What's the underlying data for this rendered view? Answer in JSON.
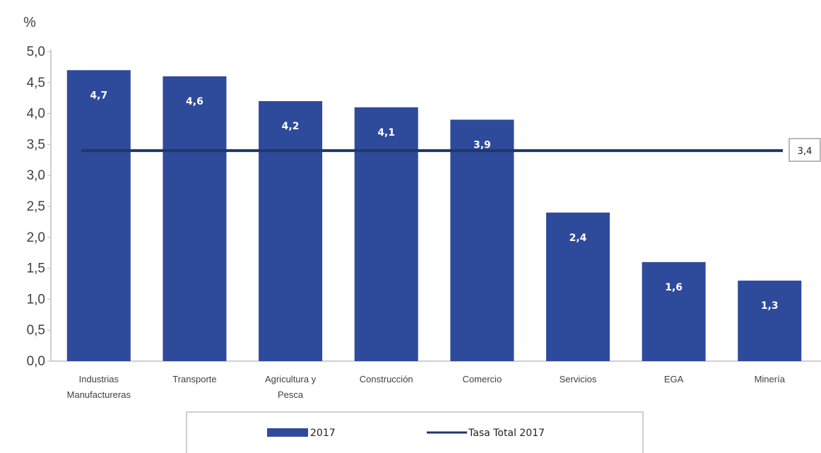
{
  "chart_data": {
    "type": "bar",
    "unit_label": "%",
    "categories": [
      [
        "Industrias",
        "Manufactureras"
      ],
      [
        "Transporte"
      ],
      [
        "Agricultura y",
        "Pesca"
      ],
      [
        "Construcción"
      ],
      [
        "Comercio"
      ],
      [
        "Servicios"
      ],
      [
        "EGA"
      ],
      [
        "Minería"
      ]
    ],
    "series": [
      {
        "name": "2017",
        "values": [
          4.7,
          4.6,
          4.2,
          4.1,
          3.9,
          2.4,
          1.6,
          1.3
        ],
        "value_labels": [
          "4,7",
          "4,6",
          "4,2",
          "4,1",
          "3,9",
          "2,4",
          "1,6",
          "1,3"
        ],
        "color": "#2e4a9b"
      }
    ],
    "reference_line": {
      "name": "Tasa Total 2017",
      "value": 3.4,
      "label": "3,4",
      "color": "#1f3864"
    },
    "ylim": [
      0,
      5.0
    ],
    "yticks": [
      {
        "value": 0.0,
        "label": "0,0"
      },
      {
        "value": 0.5,
        "label": "0,5"
      },
      {
        "value": 1.0,
        "label": "1,0"
      },
      {
        "value": 1.5,
        "label": "1,5"
      },
      {
        "value": 2.0,
        "label": "2,0"
      },
      {
        "value": 2.5,
        "label": "2,5"
      },
      {
        "value": 3.0,
        "label": "3,0"
      },
      {
        "value": 3.5,
        "label": "3,5"
      },
      {
        "value": 4.0,
        "label": "4,0"
      },
      {
        "value": 4.5,
        "label": "4,5"
      },
      {
        "value": 5.0,
        "label": "5,0"
      }
    ],
    "grid": false,
    "legend": {
      "placement": "bottom",
      "entries": [
        {
          "label": "2017",
          "kind": "bar"
        },
        {
          "label": "Tasa Total 2017",
          "kind": "line"
        }
      ]
    }
  }
}
